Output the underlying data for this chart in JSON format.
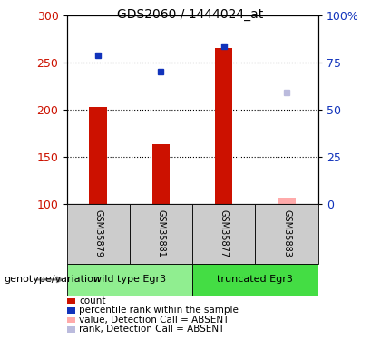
{
  "title": "GDS2060 / 1444024_at",
  "samples": [
    "GSM35879",
    "GSM35881",
    "GSM35877",
    "GSM35883"
  ],
  "groups": [
    {
      "name": "wild type Egr3",
      "color": "#90EE90",
      "span": [
        0,
        2
      ]
    },
    {
      "name": "truncated Egr3",
      "color": "#44DD44",
      "span": [
        2,
        4
      ]
    }
  ],
  "bar_bottom": 100,
  "bar_values": [
    203,
    163,
    265,
    null
  ],
  "dot_values": [
    258,
    240,
    267,
    null
  ],
  "absent_bar_value": 107,
  "absent_dot_value": 218,
  "ylim_left": [
    100,
    300
  ],
  "ylim_right": [
    0,
    100
  ],
  "yticks_left": [
    100,
    150,
    200,
    250,
    300
  ],
  "yticks_right": [
    0,
    25,
    50,
    75,
    100
  ],
  "ytick_labels_right": [
    "0",
    "25",
    "50",
    "75",
    "100%"
  ],
  "hgrid_values": [
    150,
    200,
    250
  ],
  "bar_color": "#CC1100",
  "dot_color": "#1133BB",
  "absent_bar_color": "#FFAAAA",
  "absent_dot_color": "#BBBBDD",
  "legend_items": [
    {
      "label": "count",
      "color": "#CC1100"
    },
    {
      "label": "percentile rank within the sample",
      "color": "#1133BB"
    },
    {
      "label": "value, Detection Call = ABSENT",
      "color": "#FFAAAA"
    },
    {
      "label": "rank, Detection Call = ABSENT",
      "color": "#BBBBDD"
    }
  ],
  "left_label": "genotype/variation",
  "sample_box_color": "#CCCCCC",
  "x_positions": [
    0.5,
    1.5,
    2.5,
    3.5
  ],
  "bar_width": 0.28
}
